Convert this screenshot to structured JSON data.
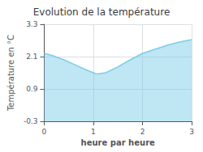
{
  "chart_data": {
    "type": "area",
    "title": "Evolution de la température",
    "xlabel": "heure par heure",
    "ylabel": "Température en °C",
    "x": [
      0,
      0.2,
      0.4,
      0.6,
      0.8,
      1.0,
      1.05,
      1.1,
      1.25,
      1.5,
      1.75,
      2.0,
      2.25,
      2.5,
      2.75,
      3.0
    ],
    "values": [
      2.22,
      2.12,
      1.98,
      1.82,
      1.65,
      1.5,
      1.47,
      1.46,
      1.5,
      1.72,
      1.98,
      2.22,
      2.37,
      2.52,
      2.64,
      2.73
    ],
    "color": "#7dcde8",
    "xlim": [
      0,
      3
    ],
    "xticks": [
      0,
      1,
      2,
      3
    ],
    "ylim": [
      -0.3,
      3.3
    ],
    "yticks": [
      -0.3,
      0.9,
      2.1,
      3.3
    ],
    "grid": true
  }
}
